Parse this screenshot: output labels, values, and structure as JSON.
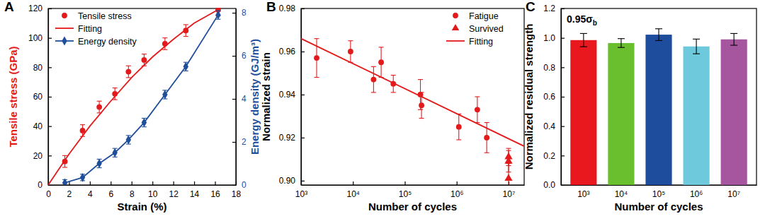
{
  "chart_data": [
    {
      "panel_label": "A",
      "type": "scatter",
      "x_label": "Strain (%)",
      "y_label": "Tensile stress (GPa)",
      "y2_label": "Energy density (GJ/m³)",
      "xlim": [
        0,
        18
      ],
      "xticks": [
        0,
        2,
        4,
        6,
        8,
        10,
        12,
        14,
        16,
        18
      ],
      "ylim": [
        0,
        120
      ],
      "yticks": [
        0,
        20,
        40,
        60,
        80,
        100,
        120
      ],
      "y2lim": [
        0,
        8.2
      ],
      "y2ticks": [
        0,
        2,
        4,
        6,
        8
      ],
      "legend": "upper left",
      "series": [
        {
          "name": "Tensile stress",
          "type": "scatter",
          "marker": "circle",
          "color": "#e31a1c",
          "x": [
            1.6,
            3.3,
            4.9,
            6.4,
            7.7,
            9.2,
            11.2,
            13.2,
            16.3
          ],
          "values": [
            16,
            37,
            53,
            62,
            77,
            85,
            96,
            105,
            119
          ],
          "error": [
            4,
            4,
            4,
            4,
            4,
            4,
            4,
            4,
            4
          ]
        },
        {
          "name": "Fitting",
          "type": "line",
          "color": "#e31a1c",
          "x": [
            0,
            2,
            4,
            6,
            8,
            10,
            12,
            14,
            16.5
          ],
          "values": [
            0,
            21,
            40,
            57,
            73,
            87,
            99,
            110,
            120
          ]
        },
        {
          "name": "Energy density",
          "type": "line",
          "marker": "diamond",
          "color": "#1f4e9a",
          "axis": "y2",
          "x": [
            1.6,
            3.3,
            4.9,
            6.4,
            7.7,
            9.2,
            11.2,
            13.2,
            16.3
          ],
          "values": [
            0.1,
            0.35,
            1.0,
            1.5,
            2.1,
            2.9,
            4.2,
            5.5,
            7.9
          ],
          "error": [
            0.15,
            0.15,
            0.2,
            0.2,
            0.2,
            0.2,
            0.2,
            0.2,
            0.2
          ]
        }
      ]
    },
    {
      "panel_label": "B",
      "type": "scatter",
      "log": "x",
      "x_label": "Number of cycles",
      "y_label": "Normalized strain",
      "xlim": [
        1000,
        20000000
      ],
      "xticks": [
        {
          "value": 1000,
          "label": "10³"
        },
        {
          "value": 10000,
          "label": "10⁴"
        },
        {
          "value": 100000,
          "label": "10⁵"
        },
        {
          "value": 1000000,
          "label": "10⁶"
        },
        {
          "value": 10000000,
          "label": "10⁷"
        }
      ],
      "ylim": [
        0.898,
        0.98
      ],
      "yticks": [
        {
          "value": 0.9,
          "label": "0.90"
        },
        {
          "value": 0.92,
          "label": "0.92"
        },
        {
          "value": 0.94,
          "label": "0.94"
        },
        {
          "value": 0.96,
          "label": "0.96"
        },
        {
          "value": 0.98,
          "label": "0.98"
        }
      ],
      "legend": "upper right",
      "series": [
        {
          "name": "Fatigue",
          "type": "scatter",
          "marker": "circle",
          "color": "#e31a1c",
          "x": [
            2000,
            9000,
            25000,
            35000,
            60000,
            200000,
            210000,
            1100000,
            2500000,
            3800000
          ],
          "values": [
            0.957,
            0.96,
            0.947,
            0.955,
            0.945,
            0.94,
            0.935,
            0.925,
            0.933,
            0.92
          ],
          "error": [
            0.009,
            0.005,
            0.006,
            0.007,
            0.004,
            0.007,
            0.006,
            0.006,
            0.006,
            0.007
          ]
        },
        {
          "name": "Survived",
          "type": "scatter",
          "marker": "triangle",
          "color": "#e31a1c",
          "x": [
            10000000,
            10000000,
            10000000
          ],
          "values": [
            0.911,
            0.909,
            0.901
          ],
          "error": [
            0.004,
            0.005,
            0.007
          ]
        },
        {
          "name": "Fitting",
          "type": "line",
          "color": "#e31a1c",
          "x": [
            1000,
            20000000
          ],
          "values": [
            0.966,
            0.916
          ]
        }
      ]
    },
    {
      "panel_label": "C",
      "type": "bar",
      "x_label": "Number of cycles",
      "y_label": "Normalized residual strength",
      "categories": [
        "10³",
        "10⁴",
        "10⁵",
        "10⁶",
        "10⁷"
      ],
      "values": [
        0.985,
        0.965,
        1.022,
        0.942,
        0.99
      ],
      "error": [
        0.045,
        0.03,
        0.04,
        0.05,
        0.04
      ],
      "colors": [
        "#e8181e",
        "#6abf2e",
        "#1f4d9e",
        "#6ec9dc",
        "#a6559f"
      ],
      "ylim": [
        0,
        1.2
      ],
      "yticks": [
        {
          "value": 0,
          "label": "0.0"
        },
        {
          "value": 0.2,
          "label": "0.2"
        },
        {
          "value": 0.4,
          "label": "0.4"
        },
        {
          "value": 0.6,
          "label": "0.6"
        },
        {
          "value": 0.8,
          "label": "0.8"
        },
        {
          "value": 1.0,
          "label": "1.0"
        },
        {
          "value": 1.2,
          "label": "1.2"
        }
      ],
      "annotation": {
        "text": "0.95σ",
        "subscript": "b"
      }
    }
  ]
}
